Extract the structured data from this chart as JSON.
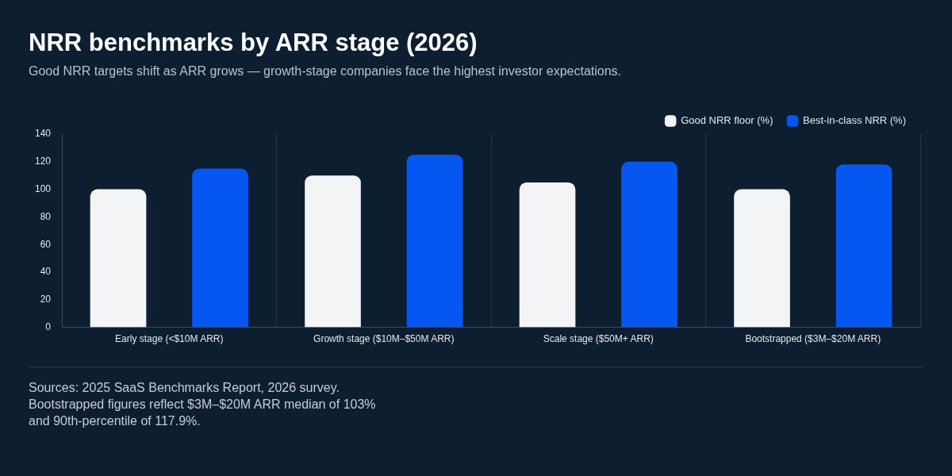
{
  "chart_data": {
    "type": "bar",
    "title": "NRR benchmarks by ARR stage (2026)",
    "subtitle": "Good NRR targets shift as ARR grows — growth-stage companies face the highest investor expectations.",
    "categories": [
      "Early stage (<$10M ARR)",
      "Growth stage ($10M–$50M ARR)",
      "Scale stage ($50M+ ARR)",
      "Bootstrapped ($3M–$20M ARR)"
    ],
    "series": [
      {
        "name": "Good NRR floor (%)",
        "color": "#f3f4f6",
        "values": [
          100,
          110,
          105,
          100
        ]
      },
      {
        "name": "Best-in-class NRR (%)",
        "color": "#0657f2",
        "values": [
          115,
          125,
          120,
          118
        ]
      }
    ],
    "ylim": [
      0,
      140
    ],
    "yticks": [
      0,
      20,
      40,
      60,
      80,
      100,
      120,
      140
    ],
    "grid": "x",
    "legend": "top right",
    "annotations": [
      "Sources: 2025 SaaS Benchmarks Report, 2026 survey. Bootstrapped figures reflect $3M–$20M ARR median of 103% and 90th-percentile of 117.9%."
    ]
  }
}
